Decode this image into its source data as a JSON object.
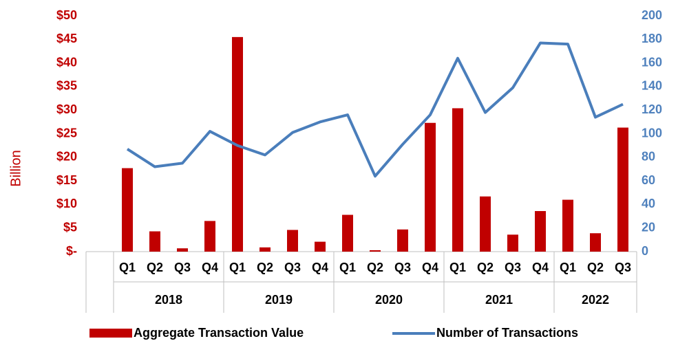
{
  "chart_data": {
    "type": "bar_line",
    "y_label": "Billion",
    "categories": [
      null,
      "Q1",
      "Q2",
      "Q3",
      "Q4",
      "Q1",
      "Q2",
      "Q3",
      "Q4",
      "Q1",
      "Q2",
      "Q3",
      "Q4",
      "Q1",
      "Q2",
      "Q3",
      "Q4",
      "Q1",
      "Q2",
      "Q3"
    ],
    "years": [
      "2018",
      "2019",
      "2020",
      "2021",
      "2022"
    ],
    "series": [
      {
        "name": "Aggregate Transaction Value",
        "type": "bar",
        "color": "#c00000",
        "axis": "y",
        "values": [
          null,
          17.7,
          4.3,
          0.7,
          6.5,
          45.5,
          0.9,
          4.6,
          2.1,
          7.8,
          0.3,
          4.7,
          27.3,
          30.4,
          11.7,
          3.6,
          8.6,
          11.0,
          3.9,
          26.3
        ]
      },
      {
        "name": "Number of Transactions",
        "type": "line",
        "color": "#4a7ebb",
        "axis": "y2",
        "values": [
          null,
          87,
          72,
          75,
          102,
          90,
          82,
          101,
          110,
          116,
          64,
          91,
          116,
          164,
          118,
          139,
          177,
          176,
          114,
          125
        ]
      }
    ],
    "ylim": [
      0,
      50
    ],
    "yticks": [
      {
        "value": 0,
        "label": "$-"
      },
      {
        "value": 5,
        "label": "$5"
      },
      {
        "value": 10,
        "label": "$10"
      },
      {
        "value": 15,
        "label": "$15"
      },
      {
        "value": 20,
        "label": "$20"
      },
      {
        "value": 25,
        "label": "$25"
      },
      {
        "value": 30,
        "label": "$30"
      },
      {
        "value": 35,
        "label": "$35"
      },
      {
        "value": 40,
        "label": "$40"
      },
      {
        "value": 45,
        "label": "$45"
      },
      {
        "value": 50,
        "label": "$50"
      }
    ],
    "y2lim": [
      0,
      200
    ],
    "y2ticks": [
      0,
      20,
      40,
      60,
      80,
      100,
      120,
      140,
      160,
      180,
      200
    ],
    "y_color": "#c00000",
    "y2_color": "#4f81bd"
  }
}
